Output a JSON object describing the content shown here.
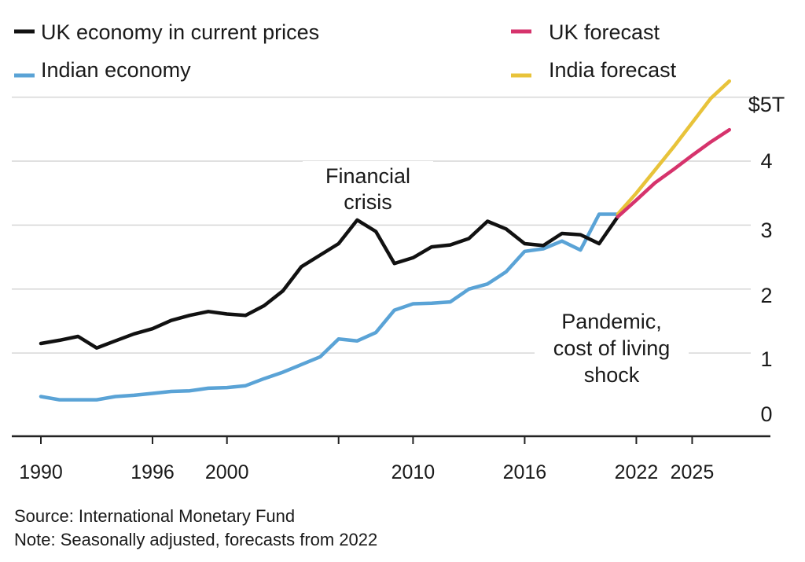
{
  "chart_data": {
    "type": "line",
    "title": "",
    "xlabel": "",
    "ylabel": "",
    "x_ticks": [
      "1990",
      "1996",
      "2000",
      "2010",
      "2016",
      "2022",
      "2025"
    ],
    "y_ticks": [
      "0",
      "1",
      "2",
      "3",
      "4",
      "$5T"
    ],
    "ylim": [
      0,
      5
    ],
    "xlim": [
      1990,
      2028
    ],
    "grid": true,
    "legend": [
      {
        "key": "uk",
        "label": "UK economy in current prices",
        "color": "#111111"
      },
      {
        "key": "uk_forecast",
        "label": "UK forecast",
        "color": "#d6336c"
      },
      {
        "key": "india",
        "label": "Indian economy",
        "color": "#5aa3d6"
      },
      {
        "key": "india_forecast",
        "label": "India forecast",
        "color": "#e8c33a"
      }
    ],
    "annotations": [
      {
        "key": "financial_crisis",
        "lines": [
          "Financial",
          "crisis"
        ]
      },
      {
        "key": "pandemic",
        "lines": [
          "Pandemic,",
          "cost of living",
          "shock"
        ]
      }
    ],
    "series": [
      {
        "key": "uk",
        "name": "UK economy in current prices",
        "color": "#111111",
        "x": [
          1990,
          1991,
          1992,
          1993,
          1994,
          1995,
          1996,
          1997,
          1998,
          1999,
          2000,
          2001,
          2002,
          2003,
          2004,
          2005,
          2006,
          2007,
          2008,
          2009,
          2010,
          2011,
          2012,
          2013,
          2014,
          2015,
          2016,
          2017,
          2018,
          2019,
          2020,
          2021
        ],
        "y": [
          1.15,
          1.2,
          1.26,
          1.08,
          1.19,
          1.3,
          1.38,
          1.51,
          1.59,
          1.65,
          1.61,
          1.59,
          1.74,
          1.97,
          2.35,
          2.53,
          2.71,
          3.08,
          2.9,
          2.4,
          2.49,
          2.66,
          2.69,
          2.79,
          3.06,
          2.94,
          2.71,
          2.68,
          2.87,
          2.85,
          2.71,
          3.13
        ]
      },
      {
        "key": "uk_forecast",
        "name": "UK forecast",
        "color": "#d6336c",
        "x": [
          2021,
          2022,
          2023,
          2024,
          2025,
          2026,
          2027
        ],
        "y": [
          3.13,
          3.39,
          3.66,
          3.87,
          4.09,
          4.3,
          4.49
        ]
      },
      {
        "key": "india",
        "name": "Indian economy",
        "color": "#5aa3d6",
        "x": [
          1990,
          1991,
          1992,
          1993,
          1994,
          1995,
          1996,
          1997,
          1998,
          1999,
          2000,
          2001,
          2002,
          2003,
          2004,
          2005,
          2006,
          2007,
          2008,
          2009,
          2010,
          2011,
          2012,
          2013,
          2014,
          2015,
          2016,
          2017,
          2018,
          2019,
          2020,
          2021
        ],
        "y": [
          0.32,
          0.27,
          0.27,
          0.27,
          0.32,
          0.34,
          0.37,
          0.4,
          0.41,
          0.45,
          0.46,
          0.49,
          0.6,
          0.7,
          0.82,
          0.94,
          1.22,
          1.19,
          1.32,
          1.67,
          1.77,
          1.78,
          1.8,
          2.0,
          2.08,
          2.27,
          2.59,
          2.63,
          2.75,
          2.61,
          3.17,
          3.17
        ]
      },
      {
        "key": "india_forecast",
        "name": "India forecast",
        "color": "#e8c33a",
        "x": [
          2021,
          2022,
          2023,
          2024,
          2025,
          2026,
          2027
        ],
        "y": [
          3.17,
          3.5,
          3.86,
          4.22,
          4.6,
          4.98,
          5.25
        ]
      }
    ]
  },
  "footer": {
    "source": "Source: International Monetary Fund",
    "note": "Note: Seasonally adjusted, forecasts from 2022"
  }
}
